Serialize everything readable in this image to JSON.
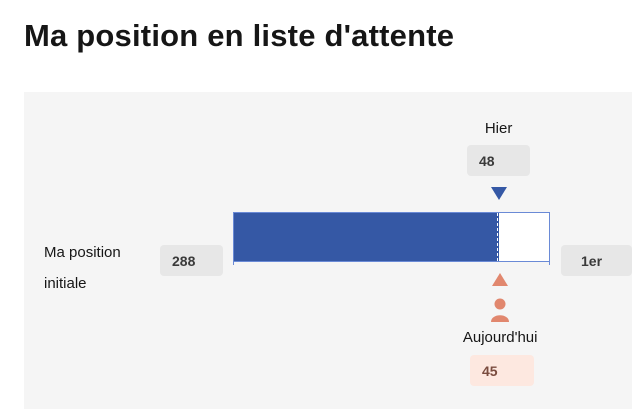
{
  "page": {
    "title": "Ma position en liste d'attente"
  },
  "queue": {
    "initial_label": "Ma position initiale",
    "initial_position": "288",
    "final_position": "1er",
    "yesterday": {
      "label": "Hier",
      "position": "48",
      "progress_fraction": 0.84
    },
    "today": {
      "label": "Aujourd'hui",
      "position": "45",
      "progress_fraction": 0.845
    }
  },
  "colors": {
    "progress_fill": "#3558a5",
    "yesterday_marker": "#3558a5",
    "today_marker": "#e1876e",
    "today_badge_bg": "#fde8e0",
    "panel_bg": "#f5f5f5"
  },
  "icons": {
    "yesterday_marker": "triangle-down-icon",
    "today_marker": "triangle-up-icon",
    "today_person": "person-icon"
  }
}
